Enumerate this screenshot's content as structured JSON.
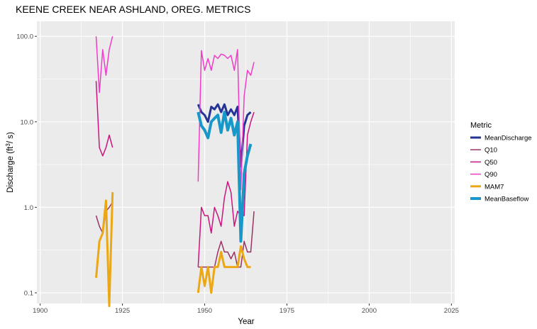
{
  "chart_data": {
    "type": "line",
    "title": "KEENE CREEK NEAR ASHLAND, OREG.  METRICS",
    "xlabel": "Year",
    "ylabel_main": "Discharge (ft",
    "ylabel_sup": "3",
    "ylabel_end": "/ s)",
    "xlim": [
      1899,
      2026
    ],
    "ylim": [
      0.075,
      150
    ],
    "yscale": "log10",
    "grid": true,
    "background": "#EBEBEB",
    "x_ticks": [
      1900,
      1925,
      1950,
      1975,
      2000,
      2025
    ],
    "x_tick_labels": [
      "1900",
      "1925",
      "1950",
      "1975",
      "2000",
      "2025"
    ],
    "y_ticks": [
      0.1,
      1,
      10,
      100
    ],
    "y_tick_labels": [
      "0.1",
      "1.0",
      "10.0",
      "100.0"
    ],
    "legend": {
      "title": "Metric",
      "position": "right"
    },
    "series": [
      {
        "name": "MeanDischarge",
        "color": "#253494",
        "width": 3,
        "segments": [
          {
            "x": [
              1948,
              1949,
              1950,
              1951,
              1952,
              1953,
              1954,
              1955,
              1956,
              1957,
              1958,
              1959,
              1960,
              1961,
              1962,
              1963,
              1964
            ],
            "y": [
              16,
              13,
              12,
              10,
              15,
              14,
              16,
              13,
              16,
              12,
              14,
              12,
              15,
              3,
              9,
              12,
              13
            ]
          }
        ]
      },
      {
        "name": "Q10",
        "color": "#993366",
        "width": 1.5,
        "segments": [
          {
            "x": [
              1917,
              1918,
              1919,
              1920,
              1921,
              1922
            ],
            "y": [
              0.8,
              0.6,
              0.5,
              0.9,
              1.0,
              1.15
            ]
          },
          {
            "x": [
              1948,
              1949,
              1950,
              1951,
              1952,
              1953,
              1954,
              1955,
              1956,
              1957,
              1958,
              1959,
              1960,
              1961,
              1962,
              1963,
              1964,
              1965
            ],
            "y": [
              0.2,
              0.2,
              0.2,
              0.2,
              0.2,
              0.2,
              0.3,
              0.4,
              0.3,
              0.3,
              0.25,
              0.3,
              0.2,
              0.2,
              0.4,
              0.3,
              0.3,
              0.9
            ]
          }
        ]
      },
      {
        "name": "Q50",
        "color": "#CC1480",
        "width": 1.5,
        "segments": [
          {
            "x": [
              1917,
              1918,
              1919,
              1920,
              1921,
              1922
            ],
            "y": [
              30,
              5,
              4,
              5,
              7,
              5
            ]
          },
          {
            "x": [
              1948,
              1949,
              1950,
              1951,
              1952,
              1953,
              1954,
              1955,
              1956,
              1957,
              1958,
              1959,
              1960,
              1961,
              1962,
              1963,
              1964,
              1965
            ],
            "y": [
              0.2,
              1.0,
              0.8,
              0.8,
              0.5,
              1.0,
              0.8,
              0.6,
              1.3,
              2.0,
              1.5,
              0.6,
              0.9,
              0.8,
              0.8,
              7,
              10,
              13
            ]
          }
        ]
      },
      {
        "name": "Q90",
        "color": "#F03CC8",
        "width": 1.5,
        "segments": [
          {
            "x": [
              1917,
              1918,
              1919,
              1920,
              1921,
              1922
            ],
            "y": [
              100,
              22,
              70,
              35,
              70,
              100
            ]
          },
          {
            "x": [
              1948,
              1949,
              1950,
              1951,
              1952,
              1953,
              1954,
              1955,
              1956,
              1957,
              1958,
              1959,
              1960,
              1961,
              1962,
              1963,
              1964,
              1965
            ],
            "y": [
              2,
              68,
              40,
              55,
              40,
              60,
              55,
              62,
              60,
              55,
              60,
              40,
              70,
              1.6,
              20,
              40,
              35,
              50
            ]
          }
        ]
      },
      {
        "name": "MAM7",
        "color": "#EBA814",
        "width": 3,
        "segments": [
          {
            "x": [
              1917,
              1918,
              1919,
              1920,
              1921,
              1922
            ],
            "y": [
              0.15,
              0.4,
              0.5,
              1.2,
              0.07,
              1.5
            ]
          },
          {
            "x": [
              1948,
              1949,
              1950,
              1951,
              1952,
              1953,
              1954,
              1955,
              1956,
              1957,
              1958,
              1959,
              1960,
              1961,
              1962,
              1963,
              1964
            ],
            "y": [
              0.1,
              0.2,
              0.12,
              0.2,
              0.1,
              0.2,
              0.2,
              0.3,
              0.2,
              0.2,
              0.2,
              0.2,
              0.2,
              0.35,
              0.25,
              0.2,
              0.2
            ]
          }
        ]
      },
      {
        "name": "MeanBaseflow",
        "color": "#1798C8",
        "width": 4,
        "segments": [
          {
            "x": [
              1948,
              1949,
              1950,
              1951,
              1952,
              1953,
              1954,
              1955,
              1956,
              1957,
              1958,
              1959,
              1960,
              1961,
              1962,
              1963,
              1964
            ],
            "y": [
              13,
              9,
              8,
              6.5,
              10,
              11,
              12,
              7.5,
              13,
              8,
              11,
              7,
              10,
              0.4,
              2.5,
              4,
              5.5
            ]
          }
        ]
      }
    ]
  }
}
